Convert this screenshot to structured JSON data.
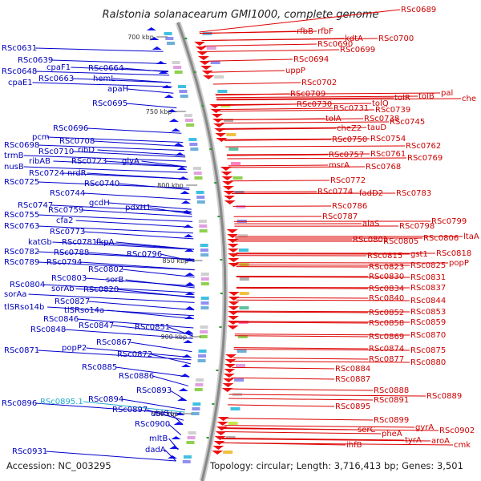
{
  "title": "Ralstonia solanacearum GMI1000, complete genome",
  "accession_text": "Accession: NC_003295",
  "topology_text": "Topology: circular; Length: 3,716,413 bp; Genes: 3,501",
  "colors": {
    "left_labels": "#0000bb",
    "right_labels": "#cc0000",
    "highlight": "#22aacc",
    "backbone": "#888888"
  },
  "scale_labels": [
    "700 kbp",
    "750 kbp",
    "800 kbp",
    "850 kbp",
    "900 kbp",
    "950 kbp"
  ],
  "left_labels": [
    "RSc0631",
    "RSc0639",
    "RSc0648",
    "cpaE1",
    "cpaF1",
    "RSc0663",
    "RSc0664",
    "hemL",
    "apaH",
    "RSc0695",
    "RSc0696",
    "pcm",
    "RSc0698",
    "RSc0708",
    "trmB",
    "RSc0710",
    "ribD",
    "nusB",
    "ribAB",
    "RSc0723",
    "glyA",
    "RSc0724",
    "nrdR",
    "RSc0725",
    "RSc0740",
    "RSc0744",
    "gcdH",
    "RSc0747",
    "pdxH1",
    "RSc0755",
    "cfa2",
    "RSc0759",
    "RSc0763",
    "RSc0773",
    "katGb",
    "RSc0781",
    "fkpA",
    "RSc0782",
    "RSc0788",
    "RSc0796",
    "RSc0789",
    "RSc0794",
    "RSc0802",
    "RSc0803",
    "sorB",
    "RSc0804",
    "sorAb",
    "RSc0820",
    "sorAa",
    "RSc0827",
    "tlSRso14b",
    "tlSRso14a",
    "RSc0846",
    "RSc0847",
    "RSc0851",
    "RSc0848",
    "RSc0867",
    "popP2",
    "RSc0871",
    "RSc0872",
    "RSc0885",
    "RSc0886",
    "RSc0893",
    "RSc0894",
    "RSc0896",
    "RSc0895.1",
    "RSc0897",
    "ubiG",
    "RSc0900",
    "mltB",
    "dadA",
    "RSc0931"
  ],
  "right_labels": [
    "RSc0689",
    "rfbB",
    "rfbF",
    "kdtA",
    "RSc0700",
    "RSc0690",
    "RSc0699",
    "RSc0694",
    "uppP",
    "RSc0702",
    "RSc0709",
    "pal",
    "tolB",
    "tolR",
    "che",
    "tolQ",
    "RSc0730",
    "RSc0731",
    "RSc0739",
    "tolA",
    "RSc0738",
    "RSc0745",
    "cheZ2",
    "tauD",
    "RSc0750",
    "RSc0754",
    "RSc0762",
    "RSc0757",
    "RSc0761",
    "msrA",
    "RSc0768",
    "RSc0769",
    "RSc0772",
    "RSc0774",
    "fadD2",
    "RSc0783",
    "RSc0786",
    "RSc0787",
    "alaS",
    "RSc0798",
    "RSc0799",
    "RSc0801",
    "RSc0805",
    "RSc0806",
    "ltaA",
    "gst1",
    "RSc0815",
    "RSc0818",
    "RSc0823",
    "RSc0825",
    "popP",
    "RSc0830",
    "RSc0831",
    "RSc0834",
    "RSc0837",
    "RSc0840",
    "RSc0844",
    "RSc0852",
    "RSc0853",
    "RSc0858",
    "RSc0859",
    "RSc0869",
    "RSc0870",
    "RSc0874",
    "RSc0875",
    "RSc0877",
    "RSc0880",
    "RSc0884",
    "RSc0887",
    "RSc0888",
    "RSc0889",
    "RSc0891",
    "RSc0895",
    "RSc0899",
    "gyrA",
    "serC",
    "RSc0902",
    "pheA",
    "tyrA",
    "aroA",
    "ihfB",
    "cmk"
  ]
}
